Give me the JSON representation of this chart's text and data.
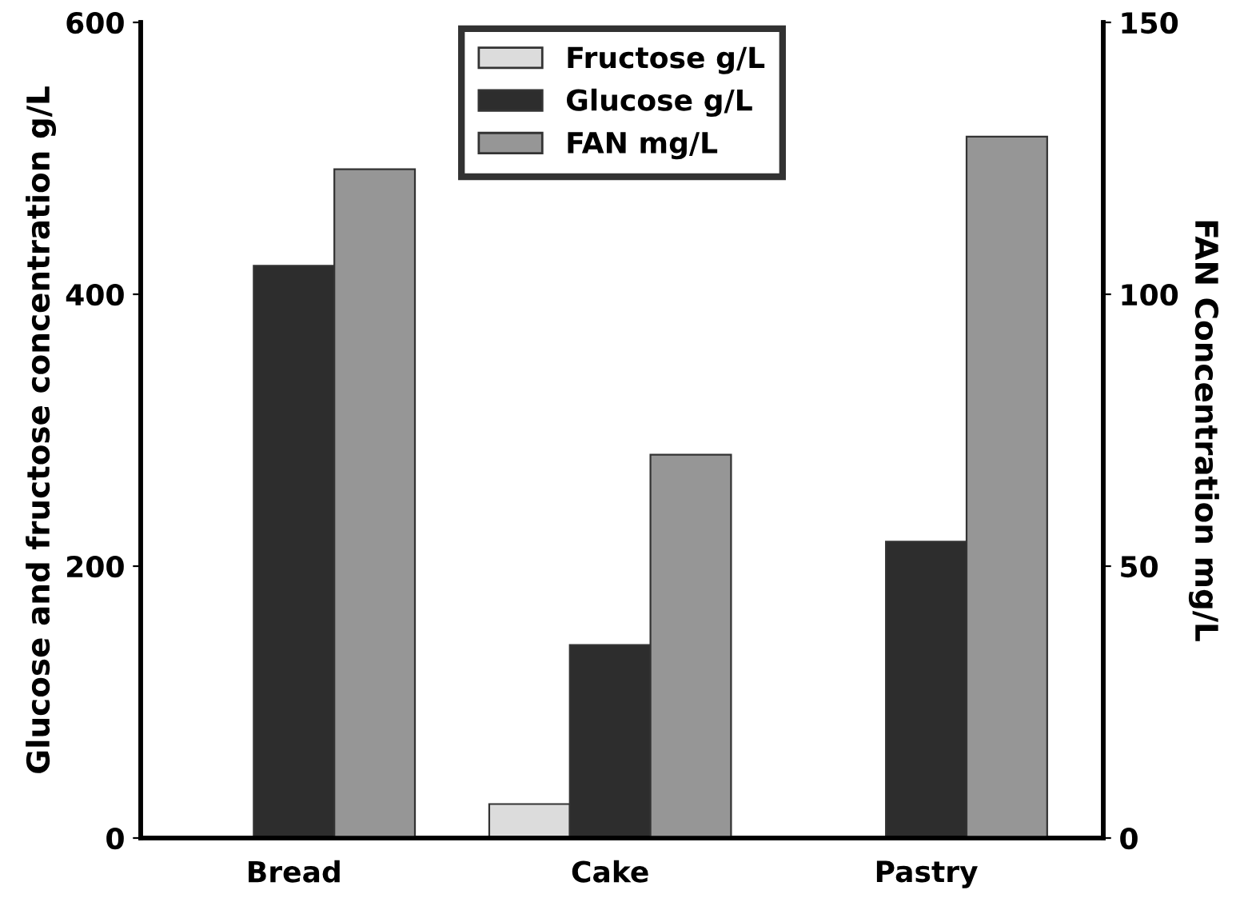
{
  "chart_data": {
    "type": "bar",
    "ylabel": "Glucose and fructose concentration g/L",
    "y2label": "FAN Concentration mg/L",
    "categories": [
      "Bread",
      "Cake",
      "Pastry"
    ],
    "series": [
      {
        "name": "Fructose g/L",
        "color": "#dcdcdc",
        "values": [
          null,
          25,
          null
        ]
      },
      {
        "name": "Glucose g/L",
        "color": "#2d2d2d",
        "values": [
          421,
          142,
          218
        ]
      },
      {
        "name": "FAN mg/L",
        "color": "#969696",
        "values": [
          123,
          70.5,
          129
        ],
        "axis": "y2"
      }
    ],
    "ylim": [
      0,
      600
    ],
    "yticks": [
      0,
      200,
      400,
      600
    ],
    "y2lim": [
      0,
      150
    ],
    "y2ticks": [
      0,
      50,
      100,
      150
    ],
    "grid": false,
    "legend": "top"
  }
}
